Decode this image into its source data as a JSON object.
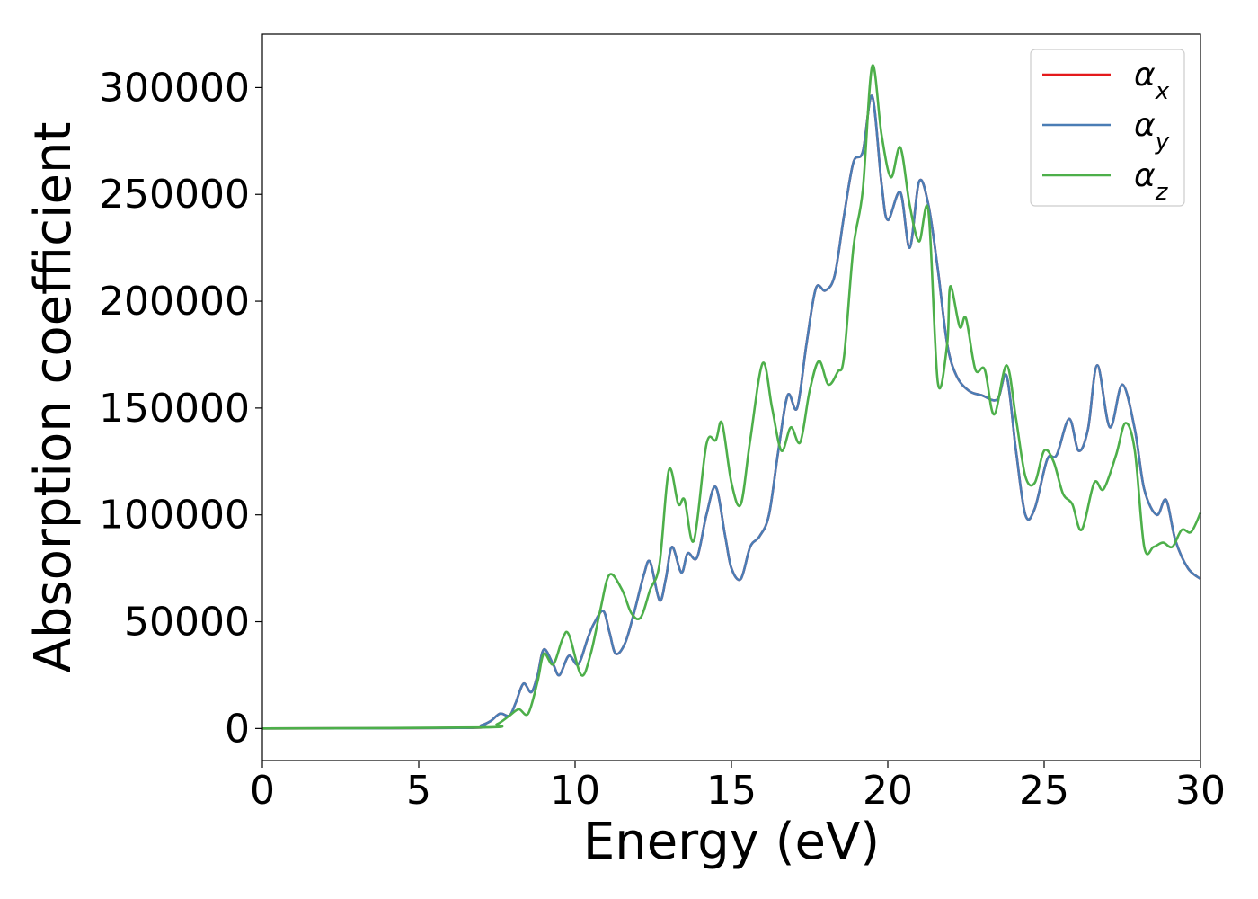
{
  "chart_data": {
    "type": "line",
    "xlabel": "Energy (eV)",
    "ylabel": "Absorption coefficient",
    "xlim": [
      0,
      30
    ],
    "ylim": [
      -15000,
      325000
    ],
    "xticks": [
      0,
      5,
      10,
      15,
      20,
      25,
      30
    ],
    "yticks": [
      0,
      50000,
      100000,
      150000,
      200000,
      250000,
      300000
    ],
    "grid": false,
    "legend_position": "top-right",
    "series": [
      {
        "name": "αx",
        "symbol": "α",
        "subscript": "x",
        "color": "#e41a1c",
        "points": [
          [
            0,
            0
          ],
          [
            6.5,
            300
          ],
          [
            7.0,
            1500
          ],
          [
            7.3,
            3500
          ],
          [
            7.6,
            7000
          ],
          [
            7.9,
            6000
          ],
          [
            8.1,
            12000
          ],
          [
            8.35,
            21000
          ],
          [
            8.6,
            17000
          ],
          [
            8.8,
            25000
          ],
          [
            9.0,
            37000
          ],
          [
            9.3,
            30000
          ],
          [
            9.5,
            25000
          ],
          [
            9.8,
            34000
          ],
          [
            10.1,
            30000
          ],
          [
            10.4,
            42000
          ],
          [
            10.6,
            49000
          ],
          [
            10.9,
            55000
          ],
          [
            11.1,
            45000
          ],
          [
            11.3,
            35000
          ],
          [
            11.6,
            40000
          ],
          [
            11.9,
            55000
          ],
          [
            12.2,
            72000
          ],
          [
            12.4,
            78000
          ],
          [
            12.7,
            60000
          ],
          [
            12.9,
            70000
          ],
          [
            13.1,
            85000
          ],
          [
            13.4,
            73000
          ],
          [
            13.6,
            82000
          ],
          [
            13.9,
            80000
          ],
          [
            14.2,
            100000
          ],
          [
            14.5,
            113000
          ],
          [
            14.8,
            90000
          ],
          [
            15.0,
            75000
          ],
          [
            15.3,
            70000
          ],
          [
            15.6,
            85000
          ],
          [
            15.9,
            90000
          ],
          [
            16.2,
            100000
          ],
          [
            16.5,
            130000
          ],
          [
            16.8,
            156000
          ],
          [
            17.1,
            150000
          ],
          [
            17.4,
            180000
          ],
          [
            17.7,
            206000
          ],
          [
            18.0,
            205000
          ],
          [
            18.3,
            212000
          ],
          [
            18.6,
            240000
          ],
          [
            18.9,
            265000
          ],
          [
            19.2,
            270000
          ],
          [
            19.5,
            296000
          ],
          [
            19.8,
            255000
          ],
          [
            20.0,
            238000
          ],
          [
            20.4,
            251000
          ],
          [
            20.7,
            225000
          ],
          [
            21.0,
            256000
          ],
          [
            21.3,
            245000
          ],
          [
            21.6,
            215000
          ],
          [
            21.9,
            180000
          ],
          [
            22.2,
            165000
          ],
          [
            22.6,
            158000
          ],
          [
            23.0,
            156000
          ],
          [
            23.5,
            154000
          ],
          [
            23.8,
            165000
          ],
          [
            24.1,
            130000
          ],
          [
            24.4,
            100000
          ],
          [
            24.7,
            103000
          ],
          [
            25.1,
            126000
          ],
          [
            25.4,
            128000
          ],
          [
            25.8,
            145000
          ],
          [
            26.1,
            130000
          ],
          [
            26.4,
            140000
          ],
          [
            26.7,
            170000
          ],
          [
            27.1,
            141000
          ],
          [
            27.5,
            161000
          ],
          [
            27.9,
            140000
          ],
          [
            28.2,
            112000
          ],
          [
            28.6,
            100000
          ],
          [
            28.9,
            107000
          ],
          [
            29.2,
            88000
          ],
          [
            29.6,
            75000
          ],
          [
            30.0,
            70000
          ]
        ]
      },
      {
        "name": "αy",
        "symbol": "α",
        "subscript": "y",
        "color": "#4a7db5",
        "points": [
          [
            0,
            0
          ],
          [
            6.5,
            300
          ],
          [
            7.0,
            1500
          ],
          [
            7.3,
            3500
          ],
          [
            7.6,
            7000
          ],
          [
            7.9,
            6000
          ],
          [
            8.1,
            12000
          ],
          [
            8.35,
            21000
          ],
          [
            8.6,
            17000
          ],
          [
            8.8,
            25000
          ],
          [
            9.0,
            37000
          ],
          [
            9.3,
            30000
          ],
          [
            9.5,
            25000
          ],
          [
            9.8,
            34000
          ],
          [
            10.1,
            30000
          ],
          [
            10.4,
            42000
          ],
          [
            10.6,
            49000
          ],
          [
            10.9,
            55000
          ],
          [
            11.1,
            45000
          ],
          [
            11.3,
            35000
          ],
          [
            11.6,
            40000
          ],
          [
            11.9,
            55000
          ],
          [
            12.2,
            72000
          ],
          [
            12.4,
            78000
          ],
          [
            12.7,
            60000
          ],
          [
            12.9,
            70000
          ],
          [
            13.1,
            85000
          ],
          [
            13.4,
            73000
          ],
          [
            13.6,
            82000
          ],
          [
            13.9,
            80000
          ],
          [
            14.2,
            100000
          ],
          [
            14.5,
            113000
          ],
          [
            14.8,
            90000
          ],
          [
            15.0,
            75000
          ],
          [
            15.3,
            70000
          ],
          [
            15.6,
            85000
          ],
          [
            15.9,
            90000
          ],
          [
            16.2,
            100000
          ],
          [
            16.5,
            130000
          ],
          [
            16.8,
            156000
          ],
          [
            17.1,
            150000
          ],
          [
            17.4,
            180000
          ],
          [
            17.7,
            206000
          ],
          [
            18.0,
            205000
          ],
          [
            18.3,
            212000
          ],
          [
            18.6,
            240000
          ],
          [
            18.9,
            265000
          ],
          [
            19.2,
            270000
          ],
          [
            19.5,
            296000
          ],
          [
            19.8,
            255000
          ],
          [
            20.0,
            238000
          ],
          [
            20.4,
            251000
          ],
          [
            20.7,
            225000
          ],
          [
            21.0,
            256000
          ],
          [
            21.3,
            245000
          ],
          [
            21.6,
            215000
          ],
          [
            21.9,
            180000
          ],
          [
            22.2,
            165000
          ],
          [
            22.6,
            158000
          ],
          [
            23.0,
            156000
          ],
          [
            23.5,
            154000
          ],
          [
            23.8,
            165000
          ],
          [
            24.1,
            130000
          ],
          [
            24.4,
            100000
          ],
          [
            24.7,
            103000
          ],
          [
            25.1,
            126000
          ],
          [
            25.4,
            128000
          ],
          [
            25.8,
            145000
          ],
          [
            26.1,
            130000
          ],
          [
            26.4,
            140000
          ],
          [
            26.7,
            170000
          ],
          [
            27.1,
            141000
          ],
          [
            27.5,
            161000
          ],
          [
            27.9,
            140000
          ],
          [
            28.2,
            112000
          ],
          [
            28.6,
            100000
          ],
          [
            28.9,
            107000
          ],
          [
            29.2,
            88000
          ],
          [
            29.6,
            75000
          ],
          [
            30.0,
            70000
          ]
        ]
      },
      {
        "name": "αz",
        "symbol": "α",
        "subscript": "z",
        "color": "#4daf4a",
        "points": [
          [
            0,
            0
          ],
          [
            7.0,
            500
          ],
          [
            7.5,
            2000
          ],
          [
            7.9,
            6000
          ],
          [
            8.2,
            9000
          ],
          [
            8.5,
            7000
          ],
          [
            8.8,
            22000
          ],
          [
            9.0,
            35000
          ],
          [
            9.3,
            30000
          ],
          [
            9.6,
            42000
          ],
          [
            9.8,
            44000
          ],
          [
            10.2,
            25000
          ],
          [
            10.5,
            35000
          ],
          [
            10.8,
            55000
          ],
          [
            11.1,
            72000
          ],
          [
            11.5,
            65000
          ],
          [
            11.8,
            54000
          ],
          [
            12.1,
            52000
          ],
          [
            12.4,
            65000
          ],
          [
            12.7,
            77000
          ],
          [
            13.0,
            121000
          ],
          [
            13.3,
            105000
          ],
          [
            13.5,
            107000
          ],
          [
            13.8,
            88000
          ],
          [
            14.2,
            133000
          ],
          [
            14.5,
            135000
          ],
          [
            14.7,
            143000
          ],
          [
            15.0,
            115000
          ],
          [
            15.3,
            105000
          ],
          [
            15.6,
            135000
          ],
          [
            16.0,
            171000
          ],
          [
            16.3,
            150000
          ],
          [
            16.6,
            130000
          ],
          [
            16.9,
            141000
          ],
          [
            17.2,
            134000
          ],
          [
            17.5,
            158000
          ],
          [
            17.8,
            172000
          ],
          [
            18.1,
            161000
          ],
          [
            18.4,
            167000
          ],
          [
            18.6,
            174000
          ],
          [
            18.9,
            225000
          ],
          [
            19.2,
            252000
          ],
          [
            19.5,
            310000
          ],
          [
            19.8,
            278000
          ],
          [
            20.1,
            258000
          ],
          [
            20.4,
            272000
          ],
          [
            20.7,
            245000
          ],
          [
            21.0,
            228000
          ],
          [
            21.3,
            242000
          ],
          [
            21.6,
            162000
          ],
          [
            21.9,
            180000
          ],
          [
            22.0,
            207000
          ],
          [
            22.3,
            188000
          ],
          [
            22.5,
            192000
          ],
          [
            22.8,
            168000
          ],
          [
            23.1,
            168000
          ],
          [
            23.4,
            147000
          ],
          [
            23.8,
            170000
          ],
          [
            24.1,
            145000
          ],
          [
            24.4,
            118000
          ],
          [
            24.7,
            115000
          ],
          [
            25.0,
            130000
          ],
          [
            25.3,
            125000
          ],
          [
            25.6,
            110000
          ],
          [
            25.9,
            105000
          ],
          [
            26.2,
            93000
          ],
          [
            26.6,
            115000
          ],
          [
            26.9,
            112000
          ],
          [
            27.3,
            128000
          ],
          [
            27.6,
            143000
          ],
          [
            27.9,
            130000
          ],
          [
            28.2,
            85000
          ],
          [
            28.5,
            85000
          ],
          [
            28.8,
            87000
          ],
          [
            29.1,
            85000
          ],
          [
            29.4,
            93000
          ],
          [
            29.7,
            92000
          ],
          [
            30.0,
            101000
          ]
        ]
      }
    ]
  }
}
